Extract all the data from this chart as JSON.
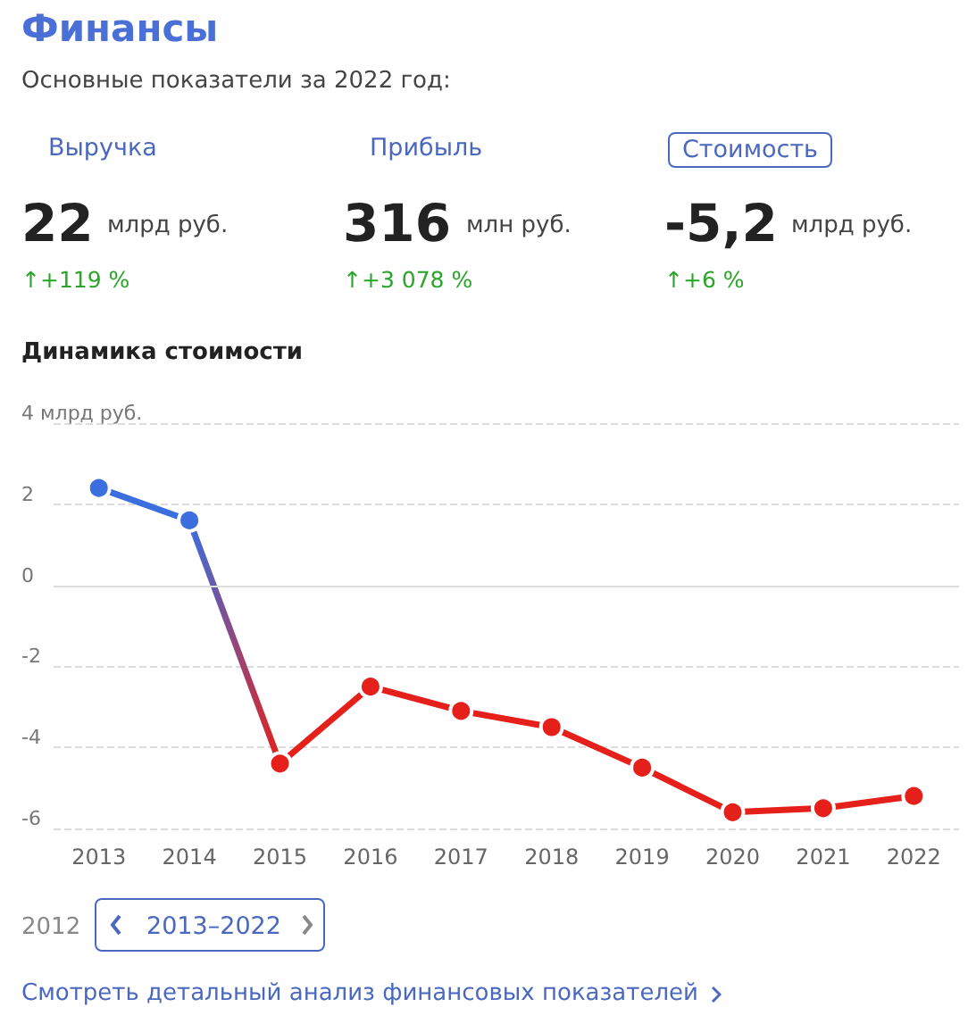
{
  "chart_data": [
    {
      "type": "other",
      "title": "Финансы",
      "subtitle": "Основные показатели за 2022 год:",
      "annotations": [
        "Выручка",
        "22",
        "млрд руб.",
        "↑+119 %",
        "Прибыль",
        "316",
        "млн руб.",
        "↑+3 078 %",
        "Стоимость",
        "-5,2",
        "млрд руб.",
        "↑+6 %"
      ]
    },
    {
      "type": "line",
      "title": "Динамика стоимости",
      "categories": [
        "2013",
        "2014",
        "2015",
        "2016",
        "2017",
        "2018",
        "2019",
        "2020",
        "2021",
        "2022"
      ],
      "values": [
        2.4,
        1.6,
        -4.4,
        -2.5,
        -3.1,
        -3.5,
        -4.5,
        -5.6,
        -5.5,
        -5.2
      ],
      "colors": [
        "#3b6fe0",
        "#3b6fe0",
        "#e5201b",
        "#e5201b",
        "#e5201b",
        "#e5201b",
        "#e5201b",
        "#e5201b",
        "#e5201b",
        "#e5201b"
      ],
      "ylim": [
        -6,
        4
      ],
      "yticks": [
        {
          "value": 4,
          "label": "4 млрд руб."
        },
        2,
        0,
        -2,
        -4,
        -6
      ],
      "grid": "y",
      "marker": "circle",
      "line_style": "solid",
      "ref_lines": [
        {
          "axis": "y",
          "value": 0,
          "color": "#dddddd",
          "line_style": "solid"
        }
      ],
      "annotations": [
        "2012",
        "2013–2022",
        "Смотреть детальный анализ финансовых показателей"
      ]
    }
  ]
}
